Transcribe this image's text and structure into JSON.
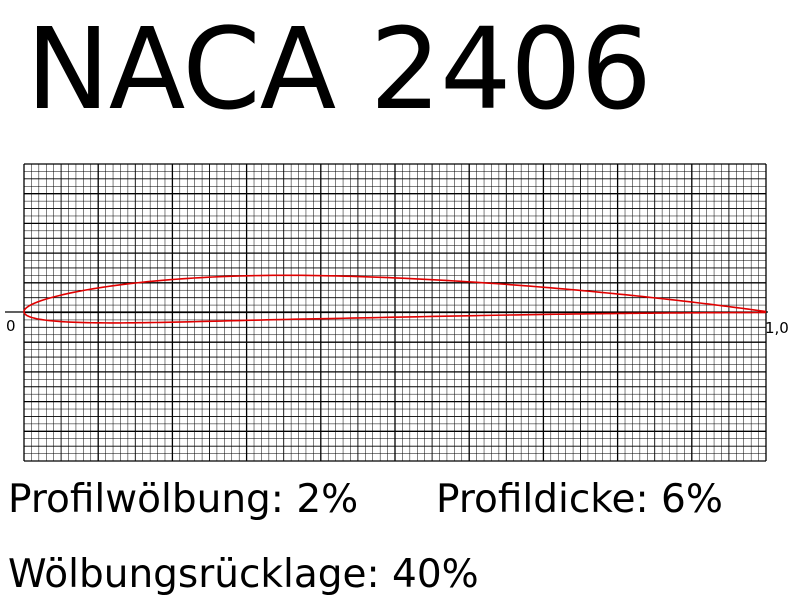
{
  "title": "NACA 2406",
  "axis": {
    "x_start_label": "0",
    "x_end_label": "1,0",
    "xlim": [
      0,
      1
    ],
    "ylim": [
      -0.2,
      0.2
    ]
  },
  "params": {
    "camber_label": "Profilwölbung: 2%",
    "thickness_label": "Profildicke: 6%",
    "camber_position_label": "Wölbungsrücklage: 40%"
  },
  "airfoil": {
    "m": 0.02,
    "p": 0.4,
    "t": 0.06,
    "color": "#e00000"
  },
  "grid": {
    "minor_color": "#000000",
    "major_color": "#000000"
  }
}
